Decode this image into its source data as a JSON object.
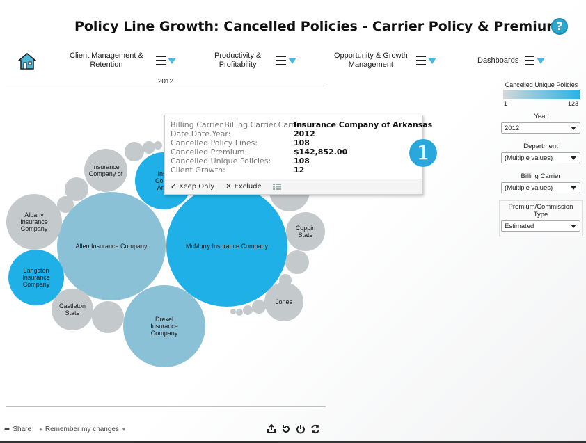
{
  "header": {
    "title": "Policy Line Growth: Cancelled Policies - Carrier Policy & Premium",
    "help_icon": "?"
  },
  "nav": {
    "items": [
      {
        "label_line1": "Client Management &",
        "label_line2": "Retention"
      },
      {
        "label_line1": "Productivity &",
        "label_line2": "Profitability"
      },
      {
        "label_line1": "Opportunity & Growth",
        "label_line2": "Management"
      },
      {
        "label_line1": "Dashboards",
        "label_line2": ""
      }
    ]
  },
  "chart": {
    "year_label": "2012",
    "colors": {
      "high": "#1eb0e6",
      "mid": "#8bc1d6",
      "low": "#c4c9cb"
    },
    "bubbles": [
      {
        "label": "McMurry Insurance Company",
        "value_level": "high"
      },
      {
        "label": "Allen Insurance Company",
        "value_level": "mid"
      },
      {
        "label": "Drexel Insurance Company",
        "value_level": "mid"
      },
      {
        "label": "Insurance Company of Arkansas",
        "value_level": "high"
      },
      {
        "label": "Albany Insurance Company",
        "value_level": "low"
      },
      {
        "label": "Langston Insurance Company",
        "value_level": "high"
      },
      {
        "label": "Insurance Company of",
        "value_level": "low"
      },
      {
        "label": "Castleton State",
        "value_level": "low"
      },
      {
        "label": "Coppin State",
        "value_level": "low"
      },
      {
        "label": "State",
        "value_level": "low"
      },
      {
        "label": "Jones",
        "value_level": "low"
      }
    ]
  },
  "tooltip": {
    "rows": [
      {
        "key": "Billing Carrier.Billing Carrier.Carrier:",
        "value": "Insurance Company of Arkansas"
      },
      {
        "key": "Date.Date.Year:",
        "value": "2012"
      },
      {
        "key": "Cancelled Policy Lines:",
        "value": "108"
      },
      {
        "key": "Cancelled Premium:",
        "value": "$142,852.00"
      },
      {
        "key": "Cancelled Unique Policies:",
        "value": "108"
      },
      {
        "key": "Client Growth:",
        "value": "12"
      }
    ],
    "keep_only": "Keep Only",
    "exclude": "Exclude"
  },
  "callout_badge": "1",
  "legend": {
    "title": "Cancelled Unique Policies",
    "min": "1",
    "max": "123"
  },
  "filters": {
    "year": {
      "label": "Year",
      "value": "2012"
    },
    "department": {
      "label": "Department",
      "value": "(Multiple values)"
    },
    "billing_carrier": {
      "label": "Billing Carrier",
      "value": "(Multiple values)"
    },
    "premium_type": {
      "label": "Premium/Commission Type",
      "value": "Estimated"
    }
  },
  "footer": {
    "share": "Share",
    "remember": "Remember my changes"
  }
}
